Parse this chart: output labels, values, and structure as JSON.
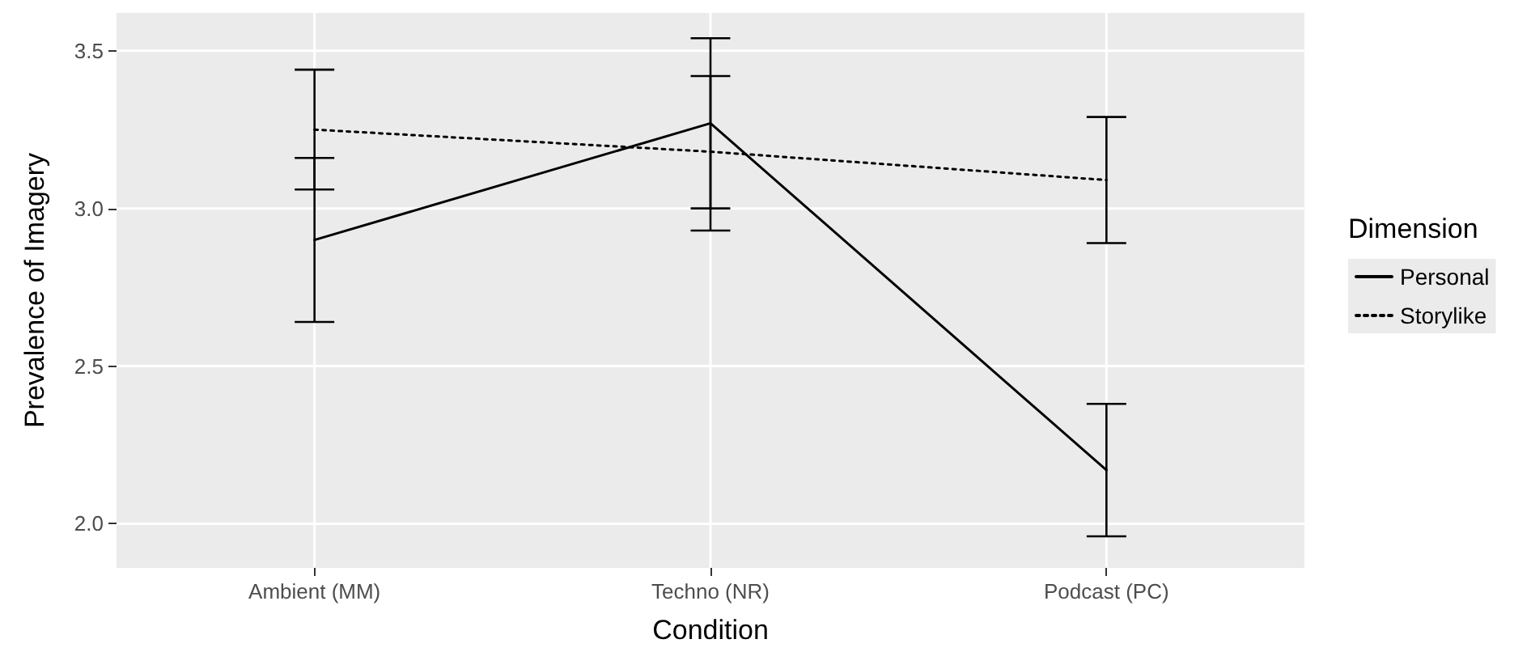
{
  "chart_data": {
    "type": "line",
    "xlabel": "Condition",
    "ylabel": "Prevalence of Imagery",
    "legend_title": "Dimension",
    "legend": "right",
    "grid": true,
    "marker": "none",
    "categories": [
      "Ambient (MM)",
      "Techno (NR)",
      "Podcast (PC)"
    ],
    "ylim": [
      1.86,
      3.62
    ],
    "yticks": [
      {
        "value": 2,
        "label": "2.0"
      },
      {
        "value": 2.5,
        "label": "2.5"
      },
      {
        "value": 3,
        "label": "3.0"
      },
      {
        "value": 3.5,
        "label": "3.5"
      }
    ],
    "series": [
      {
        "name": "Personal",
        "color": "#000000",
        "line_style": "solid",
        "values": [
          2.9,
          3.27,
          2.17
        ],
        "errors": [
          [
            2.64,
            3.16
          ],
          [
            3.0,
            3.54
          ],
          [
            1.96,
            2.38
          ]
        ]
      },
      {
        "name": "Storylike",
        "color": "#000000",
        "line_style": "dotted",
        "values": [
          3.25,
          3.18,
          3.09
        ],
        "errors": [
          [
            3.06,
            3.44
          ],
          [
            2.93,
            3.42
          ],
          [
            2.89,
            3.29
          ]
        ]
      }
    ]
  }
}
